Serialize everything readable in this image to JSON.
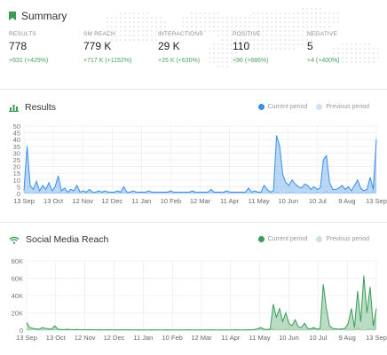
{
  "summary": {
    "title": "Summary",
    "kpis": [
      {
        "label": "RESULTS",
        "value": "778",
        "delta": "+631 (+429%)"
      },
      {
        "label": "SM REACH",
        "value": "779 K",
        "delta": "+717 K (+1152%)"
      },
      {
        "label": "INTERACTIONS",
        "value": "29 K",
        "delta": "+25 K (+630%)"
      },
      {
        "label": "POSITIVE",
        "value": "110",
        "delta": "+96 (+686%)"
      },
      {
        "label": "NEGATIVE",
        "value": "5",
        "delta": "+4 (+400%)"
      }
    ]
  },
  "colors": {
    "blue": "#3a8ee6",
    "blue_light": "#cfe2f7",
    "green": "#3a9c55",
    "green_light": "#c9e6cf",
    "delta": "#4aa35a"
  },
  "icons": {
    "summary": "bookmark-icon",
    "results": "bar-chart-icon",
    "reach": "wifi-icon"
  },
  "legend": {
    "current": "Current period",
    "previous": "Previous period"
  },
  "chart_data": [
    {
      "type": "line",
      "title": "Results",
      "ylim": [
        0,
        50
      ],
      "yticks": [
        "0",
        "5",
        "10",
        "15",
        "20",
        "25",
        "30",
        "35",
        "40",
        "45",
        "50"
      ],
      "xticks": [
        "13 Sep",
        "13 Oct",
        "12 Nov",
        "12 Dec",
        "11 Jan",
        "10 Feb",
        "12 Mar",
        "11 Apr",
        "11 May",
        "10 Jun",
        "10 Jul",
        "9 Aug",
        "13 Sep"
      ],
      "series": [
        {
          "name": "Current period",
          "color": "#3a8ee6",
          "values": [
            2,
            35,
            6,
            3,
            9,
            2,
            6,
            3,
            8,
            2,
            5,
            13,
            2,
            4,
            1,
            3,
            2,
            6,
            1,
            2,
            1,
            3,
            1,
            1,
            2,
            1,
            2,
            1,
            1,
            1,
            2,
            1,
            5,
            1,
            1,
            2,
            1,
            1,
            1,
            1,
            2,
            1,
            1,
            1,
            1,
            1,
            1,
            2,
            1,
            1,
            1,
            1,
            1,
            1,
            2,
            1,
            1,
            1,
            1,
            1,
            3,
            1,
            1,
            1,
            1,
            2,
            1,
            1,
            1,
            1,
            1,
            1,
            4,
            1,
            2,
            1,
            1,
            6,
            3,
            1,
            2,
            43,
            35,
            14,
            8,
            6,
            10,
            7,
            5,
            4,
            7,
            6,
            3,
            5,
            3,
            4,
            25,
            28,
            8,
            3,
            3,
            4,
            6,
            3,
            5,
            2,
            6,
            10,
            4,
            2,
            3,
            12,
            3,
            40
          ]
        },
        {
          "name": "Previous period",
          "color": "#cfe2f7",
          "values": [
            0,
            1,
            0,
            0,
            1,
            0,
            0,
            1,
            0,
            0,
            0,
            1,
            0,
            0,
            0,
            1,
            0,
            0,
            0,
            0,
            1,
            0,
            0,
            0,
            0,
            1,
            0,
            0,
            0,
            0,
            0,
            1,
            0,
            0,
            0,
            0,
            0,
            0,
            1,
            0,
            0,
            0,
            0,
            0,
            0,
            0,
            1,
            0,
            0,
            0,
            0,
            0,
            0,
            0,
            1,
            0,
            0,
            0,
            0,
            0,
            0,
            1,
            0,
            0,
            0,
            0,
            0,
            0,
            0,
            1,
            0,
            0,
            0,
            0,
            0,
            0,
            1,
            0,
            0,
            0,
            0,
            1,
            0,
            0,
            0,
            0,
            1,
            0,
            0,
            0,
            1,
            0,
            0,
            0,
            1,
            0,
            0,
            2,
            0,
            0,
            1,
            0,
            0,
            1,
            0,
            1,
            0,
            0,
            1,
            0,
            1,
            0,
            2,
            42
          ]
        }
      ]
    },
    {
      "type": "line",
      "title": "Social Media Reach",
      "ylim": [
        0,
        80000
      ],
      "yticks": [
        "0",
        "20K",
        "40K",
        "60K",
        "80K"
      ],
      "xticks": [
        "13 Sep",
        "13 Oct",
        "12 Nov",
        "12 Dec",
        "11 Jan",
        "10 Feb",
        "12 Mar",
        "11 Apr",
        "11 May",
        "10 Jun",
        "10 Jul",
        "9 Aug",
        "13 Sep"
      ],
      "series": [
        {
          "name": "Current period",
          "color": "#3a9c55",
          "values": [
            9000,
            3000,
            2000,
            1500,
            1000,
            3000,
            2000,
            1500,
            1000,
            5000,
            1000,
            800,
            600,
            1000,
            700,
            500,
            800,
            600,
            500,
            400,
            600,
            500,
            400,
            500,
            400,
            300,
            500,
            400,
            300,
            400,
            300,
            500,
            300,
            400,
            300,
            300,
            400,
            300,
            300,
            300,
            400,
            300,
            300,
            300,
            300,
            400,
            300,
            300,
            300,
            300,
            300,
            300,
            400,
            300,
            300,
            300,
            300,
            300,
            300,
            400,
            300,
            300,
            300,
            300,
            300,
            300,
            300,
            500,
            300,
            300,
            300,
            500,
            300,
            800,
            1500,
            3000,
            1000,
            800,
            1200,
            30000,
            15000,
            25000,
            10000,
            20000,
            8000,
            5000,
            12000,
            4000,
            3000,
            8000,
            2000,
            1500,
            3000,
            1000,
            2000,
            53000,
            25000,
            5000,
            2000,
            1500,
            1000,
            1500,
            2000,
            8000,
            25000,
            3000,
            45000,
            10000,
            63000,
            20000,
            50000,
            5000,
            25000
          ]
        },
        {
          "name": "Previous period",
          "color": "#c9e6cf",
          "values": [
            0,
            0,
            0,
            200,
            0,
            0,
            0,
            0,
            300,
            0,
            0,
            0,
            0,
            0,
            200,
            0,
            0,
            0,
            0,
            0,
            0,
            300,
            0,
            0,
            0,
            0,
            0,
            0,
            0,
            0,
            0,
            200,
            0,
            0,
            0,
            0,
            0,
            0,
            0,
            0,
            0,
            0,
            300,
            0,
            0,
            0,
            0,
            0,
            0,
            0,
            0,
            0,
            0,
            0,
            0,
            0,
            300,
            0,
            0,
            0,
            0,
            0,
            0,
            0,
            0,
            0,
            0,
            0,
            0,
            0,
            0,
            0,
            500,
            0,
            0,
            0,
            0,
            0,
            0,
            2000,
            0,
            0,
            0,
            1000,
            0,
            0,
            0,
            0,
            0,
            0,
            0,
            0,
            2000,
            0,
            0,
            0,
            0,
            0,
            0,
            0,
            1500,
            0,
            0,
            0,
            0,
            0,
            3000,
            0,
            0,
            0,
            2000,
            0,
            15000
          ]
        }
      ]
    }
  ]
}
